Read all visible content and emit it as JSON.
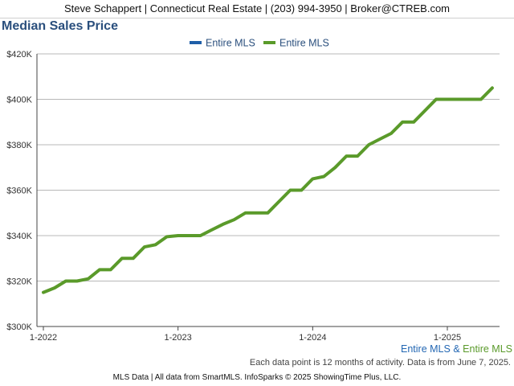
{
  "header": {
    "contact_line": "Steve Schappert | Connecticut Real Estate | (203) 994-3950 | Broker@CTREB.com"
  },
  "chart_data": {
    "type": "line",
    "title": "Median Sales Price",
    "xlabel": "",
    "ylabel": "",
    "x_tick_labels": [
      "1-2022",
      "1-2023",
      "1-2024",
      "1-2025"
    ],
    "y_tick_labels": [
      "$300K",
      "$320K",
      "$340K",
      "$360K",
      "$380K",
      "$400K",
      "$420K"
    ],
    "ylim": [
      300000,
      420000
    ],
    "grid": "horizontal",
    "legend_position": "top-center",
    "legend": [
      {
        "label": "Entire MLS",
        "color": "#1f5fa8"
      },
      {
        "label": "Entire MLS",
        "color": "#5a9a2a"
      }
    ],
    "x": [
      "2022-01",
      "2022-02",
      "2022-03",
      "2022-04",
      "2022-05",
      "2022-06",
      "2022-07",
      "2022-08",
      "2022-09",
      "2022-10",
      "2022-11",
      "2022-12",
      "2023-01",
      "2023-02",
      "2023-03",
      "2023-04",
      "2023-05",
      "2023-06",
      "2023-07",
      "2023-08",
      "2023-09",
      "2023-10",
      "2023-11",
      "2023-12",
      "2024-01",
      "2024-02",
      "2024-03",
      "2024-04",
      "2024-05",
      "2024-06",
      "2024-07",
      "2024-08",
      "2024-09",
      "2024-10",
      "2024-11",
      "2024-12",
      "2025-01",
      "2025-02",
      "2025-03",
      "2025-04",
      "2025-05"
    ],
    "series": [
      {
        "name": "Entire MLS",
        "color": "#5a9a2a",
        "values": [
          315000,
          317000,
          320000,
          320000,
          321000,
          325000,
          325000,
          330000,
          330000,
          335000,
          336000,
          339500,
          340000,
          340000,
          340000,
          342500,
          345000,
          347000,
          350000,
          350000,
          350000,
          355000,
          360000,
          360000,
          365000,
          366000,
          370000,
          375000,
          375000,
          380000,
          382500,
          385000,
          390000,
          390000,
          395000,
          400000,
          400000,
          400000,
          400000,
          400000,
          405000
        ]
      }
    ]
  },
  "bottom_legend": {
    "first": "Entire MLS",
    "amp": "&",
    "second": "Entire MLS"
  },
  "note": "Each data point is 12 months of activity. Data is from June 7, 2025.",
  "footer": "MLS Data | All data from SmartMLS. InfoSparks © 2025 ShowingTime Plus, LLC."
}
